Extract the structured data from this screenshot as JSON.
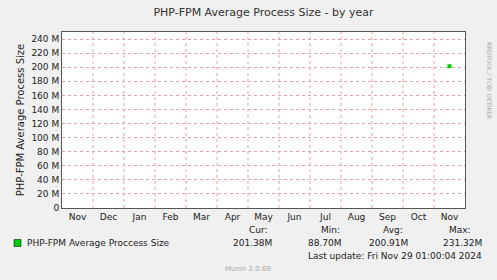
{
  "chart_data": {
    "type": "line",
    "title": "PHP-FPM Average Process Size - by year",
    "y_label": "PHP-FPM Average Process Size",
    "categories": [
      "Nov",
      "Dec",
      "Jan",
      "Feb",
      "Mar",
      "Apr",
      "May",
      "Jun",
      "Jul",
      "Aug",
      "Sep",
      "Oct",
      "Nov"
    ],
    "series": [
      {
        "name": "PHP-FPM Average Proccess Size",
        "color": "#00cc00",
        "marker": "square",
        "values": [
          null,
          null,
          null,
          null,
          null,
          null,
          null,
          null,
          null,
          null,
          null,
          null,
          201380000
        ]
      }
    ],
    "ylim": [
      0,
      250000000
    ],
    "yticks": [
      0,
      {
        "value": 20000000,
        "label": "20 M"
      },
      {
        "value": 40000000,
        "label": "40 M"
      },
      {
        "value": 60000000,
        "label": "60 M"
      },
      {
        "value": 80000000,
        "label": "80 M"
      },
      {
        "value": 100000000,
        "label": "100 M"
      },
      {
        "value": 120000000,
        "label": "120 M"
      },
      {
        "value": 140000000,
        "label": "140 M"
      },
      {
        "value": 160000000,
        "label": "160 M"
      },
      {
        "value": 180000000,
        "label": "180 M"
      },
      {
        "value": 200000000,
        "label": "200 M"
      },
      {
        "value": 220000000,
        "label": "220 M"
      },
      {
        "value": 240000000,
        "label": "240 M"
      }
    ],
    "grid": true,
    "stats": {
      "headers": [
        "Cur:",
        "Min:",
        "Avg:",
        "Max:"
      ],
      "values": [
        "201.38M",
        "88.70M",
        "200.91M",
        "231.32M"
      ]
    },
    "footer": "Last update: Fri Nov 29 01:00:04 2024",
    "watermark": "Munin 2.0.69",
    "side_label": "RRDTOOL / TOBI OETIKER"
  }
}
